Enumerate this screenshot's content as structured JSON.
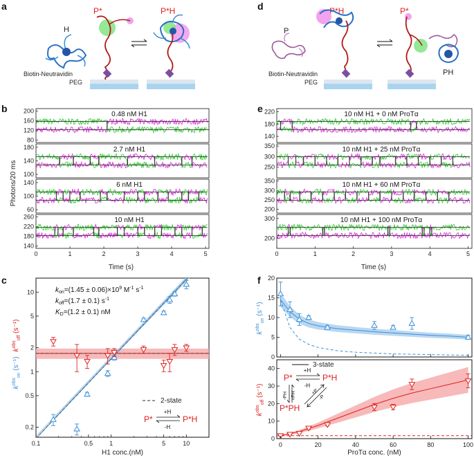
{
  "panels": {
    "a": {
      "letter": "a",
      "labels": {
        "h": "H",
        "p_star": "P*",
        "p_star_h": "P*H",
        "biotin": "Biotin-Neutravidin",
        "peg": "PEG"
      }
    },
    "d": {
      "letter": "d",
      "labels": {
        "p": "P",
        "p_star_h": "P*H",
        "p_star": "P*",
        "ph": "PH",
        "biotin": "Biotin-Neutravidin",
        "peg": "PEG"
      }
    },
    "b": {
      "letter": "b",
      "ylabel": "Photons/20 ms",
      "xlabel": "Time (s)",
      "xticks": [
        "0",
        "1",
        "2",
        "3",
        "4",
        "5"
      ],
      "traces": [
        {
          "label": "0.48 nM H1",
          "yticks": [
            "80",
            "120",
            "160",
            "200"
          ],
          "ylim": [
            70,
            210
          ]
        },
        {
          "label": "2.7 nM H1",
          "yticks": [
            "100",
            "140",
            "180"
          ],
          "ylim": [
            90,
            190
          ]
        },
        {
          "label": "6 nM H1",
          "yticks": [
            "60",
            "100",
            "140"
          ],
          "ylim": [
            50,
            150
          ]
        },
        {
          "label": "10 nM H1",
          "yticks": [
            "140",
            "180",
            "220",
            "260"
          ],
          "ylim": [
            130,
            270
          ]
        }
      ]
    },
    "e": {
      "letter": "e",
      "xlabel": "Time (s)",
      "xticks": [
        "0",
        "1",
        "2",
        "3",
        "4",
        "5"
      ],
      "traces": [
        {
          "label": "10 nM H1 + 0 nM ProTα",
          "yticks": [
            "140",
            "180",
            "220"
          ],
          "ylim": [
            120,
            230
          ]
        },
        {
          "label": "10 nM H1 + 25 nM ProTα",
          "yticks": [
            "250",
            "300",
            "350"
          ],
          "ylim": [
            200,
            360
          ]
        },
        {
          "label": "10 nM H1 + 60 nM ProTα",
          "yticks": [
            "200",
            "250",
            "300",
            "350"
          ],
          "ylim": [
            180,
            360
          ]
        },
        {
          "label": "10 nM H1 + 100 nM ProTα",
          "yticks": [
            "200",
            "300"
          ],
          "ylim": [
            150,
            320
          ]
        }
      ]
    },
    "c": {
      "letter": "c",
      "xlabel": "H1 conc.(nM)",
      "ylabel_on": "k_on^obs (s⁻¹)",
      "ylabel_off": "k_off^obs (s⁻¹)",
      "ylabel_on_main": "k",
      "ylabel_on_sup": "obs",
      "ylabel_on_sub": "on",
      "ylabel_unit": " (s⁻¹)",
      "ylabel_off_main": "k",
      "ylabel_off_sup": "obs",
      "ylabel_off_sub": "off",
      "xticks": [
        "0.1",
        "0.5",
        "1",
        "5",
        "10"
      ],
      "yticks": [
        "0.2",
        "0.5",
        "1",
        "2",
        "5",
        "10"
      ],
      "annotations": {
        "kon": "k_on=(1.45 ± 0.06)×10⁹ M⁻¹ s⁻¹",
        "kon_a": "k",
        "kon_b": "on",
        "kon_c": "=(1.45 ± 0.06)×10",
        "kon_d": "9",
        "kon_e": " M",
        "kon_f": "-1",
        "kon_g": " s",
        "kon_h": "-1",
        "koff": "k_off=(1.7 ± 0.1) s⁻¹",
        "koff_a": "k",
        "koff_b": "off",
        "koff_c": "=(1.7 ± 0.1) s",
        "koff_d": "-1",
        "kd": "K_D=(1.2 ± 0.1) nM",
        "kd_a": "K",
        "kd_b": "D",
        "kd_c": "=(1.2 ± 0.1) nM",
        "legend_2state": "2-state",
        "scheme_left": "P*",
        "scheme_right": "P*H",
        "scheme_top": "+H",
        "scheme_bottom": "-H"
      }
    },
    "f": {
      "letter": "f",
      "xlabel": "ProTα conc. (nM)",
      "ylabel_top_main": "k",
      "ylabel_top_sup": "obs",
      "ylabel_top_sub": "on",
      "ylabel_unit": " (s⁻¹)",
      "ylabel_bottom_main": "k",
      "ylabel_bottom_sup": "obs",
      "ylabel_bottom_sub": "off",
      "xticks": [
        "0",
        "20",
        "40",
        "60",
        "80",
        "100"
      ],
      "yticks_top": [
        "0",
        "5",
        "10",
        "15",
        "20"
      ],
      "yticks_bottom": [
        "0",
        "10",
        "20",
        "30",
        "40"
      ],
      "annotations": {
        "legend_3state": "3-state",
        "scheme_p": "P*",
        "scheme_ph": "P*H",
        "scheme_pph": "P*PH",
        "scheme_top": "+H",
        "scheme_bottom": "-H",
        "scheme_left_a": "-PH",
        "scheme_left_b": "+PH",
        "scheme_diag_a": "+P",
        "scheme_diag_b": "-P"
      }
    }
  },
  "colors": {
    "green": "#22cc22",
    "magenta": "#dd22dd",
    "blue": "#3a8fd6",
    "blue_band": "#a9cdee",
    "red": "#e02020",
    "red_band": "#f5a8a8",
    "black": "#111111",
    "peg": "#a9d4f0",
    "neutravidin": "#7c4ea2"
  },
  "chart_data": [
    {
      "panel": "c",
      "type": "scatter",
      "xscale": "log",
      "yscale": "log",
      "xlim": [
        0.1,
        20
      ],
      "ylim": [
        0.15,
        15
      ],
      "xlabel": "H1 conc.(nM)",
      "series": [
        {
          "name": "kon",
          "marker": "triangle-up",
          "x": [
            0.17,
            0.35,
            0.48,
            0.9,
            1.1,
            2.7,
            5,
            6,
            7,
            10
          ],
          "y": [
            0.25,
            0.19,
            0.52,
            0.95,
            1.5,
            4.5,
            5.5,
            8,
            9.5,
            12.5
          ],
          "yerr": [
            0.04,
            0.03,
            0.03,
            0.08,
            0.1,
            0.2,
            0.3,
            0.8,
            0.6,
            1.5
          ]
        },
        {
          "name": "koff",
          "marker": "triangle-down",
          "x": [
            0.17,
            0.35,
            0.48,
            0.9,
            1.1,
            2.7,
            5,
            6,
            7,
            10
          ],
          "y": [
            2.4,
            1.6,
            1.35,
            1.6,
            1.75,
            1.9,
            1.2,
            1.35,
            1.9,
            2.0
          ],
          "yerr": [
            0.3,
            0.6,
            0.25,
            0.35,
            0.2,
            0.2,
            0.2,
            0.35,
            0.3,
            0.2
          ]
        }
      ],
      "fit_kon": {
        "slope_per_nM": 1.45,
        "band": 0.06
      },
      "fit_koff": {
        "value": 1.7,
        "band": 0.1
      }
    },
    {
      "panel": "f-top",
      "type": "scatter",
      "xlim": [
        -2,
        102
      ],
      "ylim": [
        0,
        20
      ],
      "series": [
        {
          "name": "kon",
          "marker": "triangle-up",
          "x": [
            0,
            5,
            10,
            15,
            25,
            50,
            60,
            70,
            100
          ],
          "y": [
            16,
            12,
            9.5,
            10,
            7.5,
            8,
            7.5,
            8.5,
            5
          ],
          "yerr": [
            3,
            2,
            1.5,
            0.5,
            0.5,
            1,
            0.5,
            1.5,
            0.5
          ]
        }
      ],
      "fit": {
        "x": [
          0,
          5,
          10,
          15,
          20,
          30,
          40,
          50,
          60,
          70,
          80,
          90,
          100
        ],
        "y": [
          14.5,
          11.5,
          9.6,
          8.5,
          7.9,
          7.2,
          6.8,
          6.4,
          6.1,
          5.8,
          5.5,
          5.3,
          5.0
        ]
      },
      "dashed": {
        "x": [
          0,
          5,
          10,
          15,
          20,
          30,
          40,
          50,
          60,
          70,
          80,
          90,
          100
        ],
        "y": [
          14.5,
          7.5,
          4.5,
          3.2,
          2.4,
          1.6,
          1.2,
          1.0,
          0.8,
          0.7,
          0.6,
          0.5,
          0.45
        ]
      }
    },
    {
      "panel": "f-bottom",
      "type": "scatter",
      "xlim": [
        -2,
        102
      ],
      "ylim": [
        0,
        45
      ],
      "series": [
        {
          "name": "koff",
          "marker": "triangle-down",
          "x": [
            0,
            5,
            10,
            15,
            25,
            50,
            60,
            70,
            100
          ],
          "y": [
            1.7,
            2.5,
            3,
            6,
            8,
            18,
            18,
            31,
            33
          ],
          "yerr": [
            0.2,
            0.3,
            0.3,
            0.8,
            0.8,
            2,
            1.5,
            3,
            4
          ]
        }
      ],
      "fit": {
        "x": [
          0,
          10,
          20,
          30,
          40,
          50,
          60,
          70,
          80,
          90,
          100
        ],
        "y": [
          1.7,
          4.0,
          7.5,
          11.5,
          15.5,
          19.5,
          23,
          26,
          28.5,
          31,
          33.5
        ]
      },
      "dashed": {
        "value": 1.7
      }
    }
  ]
}
